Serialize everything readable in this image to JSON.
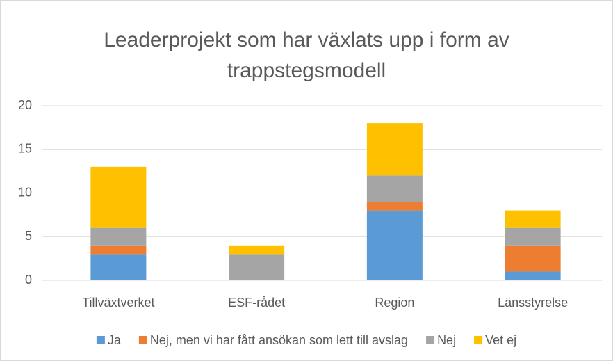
{
  "chart_data": {
    "type": "stacked_bar",
    "title": "Leaderprojekt som har växlats upp i form av trappstegsmodell",
    "categories": [
      "Tillväxtverket",
      "ESF-rådet",
      "Region",
      "Länsstyrelse"
    ],
    "series": [
      {
        "name": "Ja",
        "color": "#5b9bd5",
        "values": [
          3,
          0,
          8,
          1
        ]
      },
      {
        "name": "Nej, men vi har fått ansökan som lett till avslag",
        "color": "#ed7d31",
        "values": [
          1,
          0,
          1,
          3
        ]
      },
      {
        "name": "Nej",
        "color": "#a5a5a5",
        "values": [
          2,
          3,
          3,
          2
        ]
      },
      {
        "name": "Vet ej",
        "color": "#ffc000",
        "values": [
          7,
          1,
          6,
          2
        ]
      }
    ],
    "ylim": [
      0,
      20
    ],
    "yticks": [
      0,
      5,
      10,
      15,
      20
    ],
    "grid": true,
    "legend": "bottom"
  }
}
